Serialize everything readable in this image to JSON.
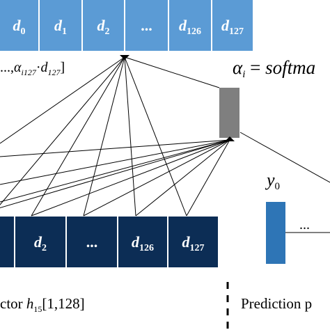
{
  "top_row": {
    "cells": [
      {
        "var": "d",
        "sub": "0"
      },
      {
        "var": "d",
        "sub": "1"
      },
      {
        "var": "d",
        "sub": "2"
      },
      {
        "var": "",
        "sub": "",
        "text": "..."
      },
      {
        "var": "d",
        "sub": "126"
      },
      {
        "var": "d",
        "sub": "127"
      }
    ]
  },
  "bottom_row": {
    "cells": [
      {
        "var": "",
        "sub": "",
        "text": ""
      },
      {
        "var": "d",
        "sub": "2"
      },
      {
        "var": "",
        "sub": "",
        "text": "..."
      },
      {
        "var": "d",
        "sub": "126"
      },
      {
        "var": "d",
        "sub": "127"
      }
    ]
  },
  "labels": {
    "weighted_sum": {
      "prefix": "...,",
      "alpha": "α",
      "alpha_sub": "i127",
      "dot": "·",
      "d": "d",
      "d_sub": "127",
      "close": "]"
    },
    "alpha_eq": {
      "alpha": "α",
      "sub": "i",
      "eq": "=",
      "func": "softma"
    },
    "y0": {
      "var": "y",
      "sub": "0"
    },
    "pred_dots": "...",
    "vector_label": {
      "text": "ctor",
      "h": "h",
      "h_sub": "15",
      "dims": "[1,128]"
    },
    "prediction_label": "Prediction p"
  },
  "colors": {
    "top_cell": "#5b9bd5",
    "bottom_cell": "#0c2d55",
    "attention_box": "#7f7f7f",
    "y_bar": "#2e75b6",
    "lines": "#000000"
  }
}
